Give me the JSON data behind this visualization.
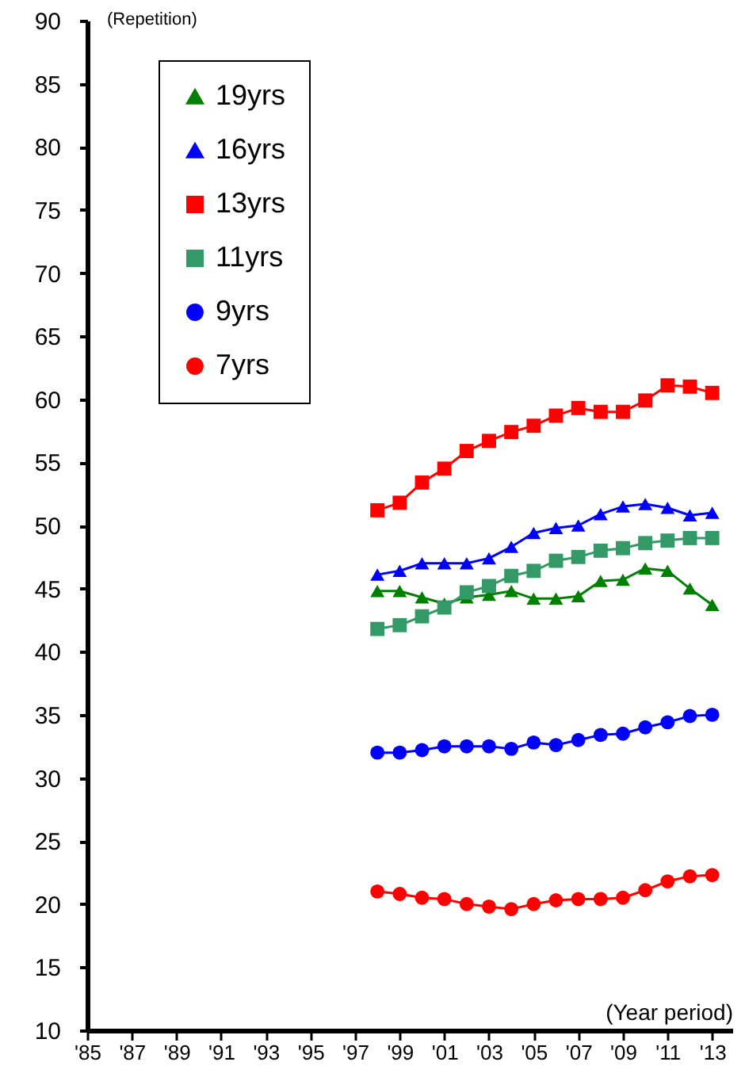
{
  "chart_data": {
    "type": "line",
    "xlabel": "(Year period)",
    "ylabel": "(Repetition)",
    "x": [
      1998,
      1999,
      2000,
      2001,
      2002,
      2003,
      2004,
      2005,
      2006,
      2007,
      2008,
      2009,
      2010,
      2011,
      2012,
      2013
    ],
    "xlim": [
      1985,
      2013.9
    ],
    "xticks": [
      {
        "value": 1985,
        "label": "'85"
      },
      {
        "value": 1987,
        "label": "'87"
      },
      {
        "value": 1989,
        "label": "'89"
      },
      {
        "value": 1991,
        "label": "'91"
      },
      {
        "value": 1993,
        "label": "'93"
      },
      {
        "value": 1995,
        "label": "'95"
      },
      {
        "value": 1997,
        "label": "'97"
      },
      {
        "value": 1999,
        "label": "'99"
      },
      {
        "value": 2001,
        "label": "'01"
      },
      {
        "value": 2003,
        "label": "'03"
      },
      {
        "value": 2005,
        "label": "'05"
      },
      {
        "value": 2007,
        "label": "'07"
      },
      {
        "value": 2009,
        "label": "'09"
      },
      {
        "value": 2011,
        "label": "'11"
      },
      {
        "value": 2013,
        "label": "'13"
      }
    ],
    "ylim": [
      10,
      90
    ],
    "yticks": [
      10,
      15,
      20,
      25,
      30,
      35,
      40,
      45,
      50,
      55,
      60,
      65,
      70,
      75,
      80,
      85,
      90
    ],
    "grid": false,
    "legend": "top left",
    "series": [
      {
        "name": "19yrs",
        "color": "#008000",
        "marker": "triangle",
        "values": [
          44.8,
          44.8,
          44.3,
          43.8,
          44.3,
          44.5,
          44.8,
          44.2,
          44.2,
          44.4,
          45.6,
          45.7,
          46.6,
          46.4,
          45.0,
          43.7
        ]
      },
      {
        "name": "16yrs",
        "color": "#0000ff",
        "marker": "triangle",
        "values": [
          46.1,
          46.4,
          47.0,
          47.0,
          47.0,
          47.4,
          48.3,
          49.4,
          49.8,
          50.0,
          50.9,
          51.5,
          51.7,
          51.4,
          50.8,
          51.0
        ]
      },
      {
        "name": "13yrs",
        "color": "#ff0000",
        "marker": "square",
        "values": [
          51.2,
          51.8,
          53.4,
          54.5,
          55.9,
          56.7,
          57.4,
          57.9,
          58.7,
          59.3,
          59.0,
          59.0,
          59.9,
          61.1,
          61.0,
          60.5
        ]
      },
      {
        "name": "11yrs",
        "color": "#339966",
        "marker": "square",
        "values": [
          41.8,
          42.1,
          42.8,
          43.5,
          44.7,
          45.2,
          46.0,
          46.4,
          47.2,
          47.5,
          48.0,
          48.2,
          48.6,
          48.8,
          49.0,
          49.0
        ]
      },
      {
        "name": "9yrs",
        "color": "#0000ff",
        "marker": "circle",
        "values": [
          32.0,
          32.0,
          32.2,
          32.5,
          32.5,
          32.5,
          32.3,
          32.8,
          32.6,
          33.0,
          33.4,
          33.5,
          34.0,
          34.4,
          34.9,
          35.0
        ]
      },
      {
        "name": "7yrs",
        "color": "#ff0000",
        "marker": "circle",
        "values": [
          21.0,
          20.8,
          20.5,
          20.4,
          20.0,
          19.8,
          19.6,
          20.0,
          20.3,
          20.4,
          20.4,
          20.5,
          21.1,
          21.8,
          22.2,
          22.3
        ]
      }
    ]
  }
}
